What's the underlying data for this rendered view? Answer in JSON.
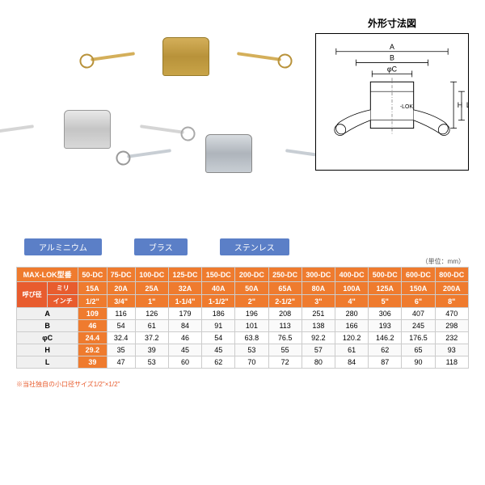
{
  "diagram": {
    "title": "外形寸法図",
    "labels": {
      "A": "A",
      "B": "B",
      "C": "φC",
      "H": "H",
      "L": "L",
      "lok": "-LOK"
    }
  },
  "materials": {
    "aluminum": "アルミニウム",
    "brass": "ブラス",
    "stainless": "ステンレス"
  },
  "unit_note": "（単位：mm）",
  "table": {
    "headers": {
      "model_label": "MAX-LOK型番",
      "size_group": "呼び径",
      "mm_label": "ミリ",
      "inch_label": "インチ"
    },
    "models": [
      "50-DC",
      "75-DC",
      "100-DC",
      "125-DC",
      "150-DC",
      "200-DC",
      "250-DC",
      "300-DC",
      "400-DC",
      "500-DC",
      "600-DC",
      "800-DC"
    ],
    "mm": [
      "15A",
      "20A",
      "25A",
      "32A",
      "40A",
      "50A",
      "65A",
      "80A",
      "100A",
      "125A",
      "150A",
      "200A"
    ],
    "inch": [
      "1/2\"",
      "3/4\"",
      "1\"",
      "1-1/4\"",
      "1-1/2\"",
      "2\"",
      "2-1/2\"",
      "3\"",
      "4\"",
      "5\"",
      "6\"",
      "8\""
    ],
    "rows": [
      {
        "label": "A",
        "first": "109",
        "rest": [
          "116",
          "126",
          "179",
          "186",
          "196",
          "208",
          "251",
          "280",
          "306",
          "407",
          "470"
        ]
      },
      {
        "label": "B",
        "first": "46",
        "rest": [
          "54",
          "61",
          "84",
          "91",
          "101",
          "113",
          "138",
          "166",
          "193",
          "245",
          "298"
        ]
      },
      {
        "label": "φC",
        "first": "24.4",
        "rest": [
          "32.4",
          "37.2",
          "46",
          "54",
          "63.8",
          "76.5",
          "92.2",
          "120.2",
          "146.2",
          "176.5",
          "232"
        ]
      },
      {
        "label": "H",
        "first": "29.2",
        "rest": [
          "35",
          "39",
          "45",
          "45",
          "53",
          "55",
          "57",
          "61",
          "62",
          "65",
          "93"
        ]
      },
      {
        "label": "L",
        "first": "39",
        "rest": [
          "47",
          "53",
          "60",
          "62",
          "70",
          "72",
          "80",
          "84",
          "87",
          "90",
          "118"
        ]
      }
    ]
  },
  "footnote": "※当社独自の小口径サイズ1/2\"×1/2\"",
  "colors": {
    "orange": "#ef7b2e",
    "orange_dark": "#e85c2e",
    "blue": "#5b7fc7"
  }
}
